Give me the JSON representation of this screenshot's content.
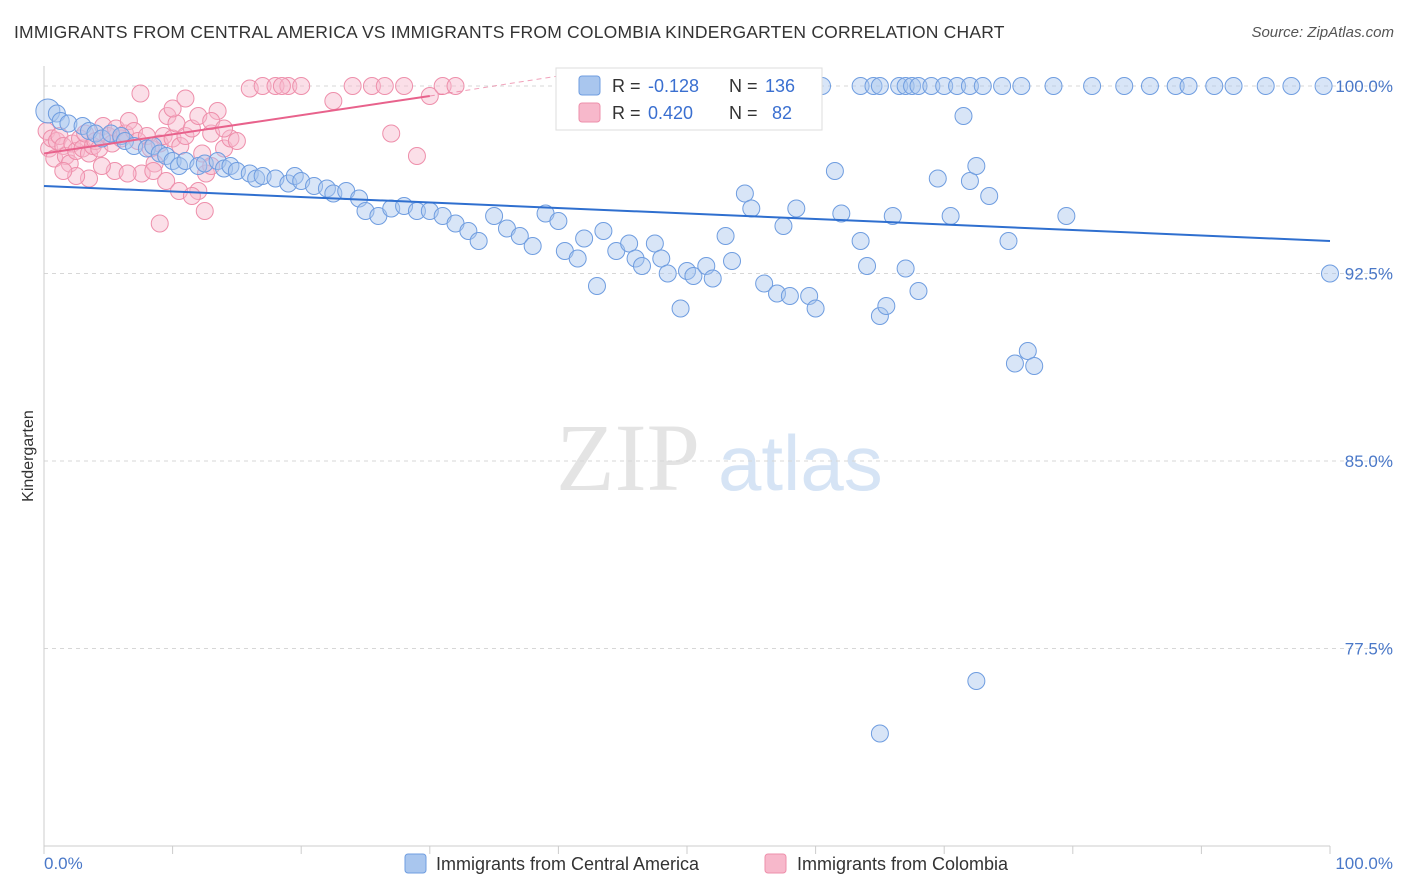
{
  "header": {
    "title": "IMMIGRANTS FROM CENTRAL AMERICA VS IMMIGRANTS FROM COLOMBIA KINDERGARTEN CORRELATION CHART",
    "source": "Source: ZipAtlas.com"
  },
  "watermark": {
    "zip": "ZIP",
    "atlas": "atlas"
  },
  "colors": {
    "blue_fill": "#a9c6ee",
    "blue_stroke": "#6f9de0",
    "blue_line": "#2f6fcf",
    "pink_fill": "#f7b8cb",
    "pink_stroke": "#ee8fab",
    "pink_line": "#e8628c",
    "grid": "#d7d7d7",
    "axis_text": "#4a78c8"
  },
  "stats_box": {
    "r_label": "R =",
    "n_label": "N =",
    "blue": {
      "r": "-0.128",
      "n": "136"
    },
    "pink": {
      "r": "0.420",
      "n": "82"
    }
  },
  "legend": {
    "blue_label": "Immigrants from Central America",
    "pink_label": "Immigrants from Colombia"
  },
  "chart_data": {
    "type": "scatter",
    "title": "IMMIGRANTS FROM CENTRAL AMERICA VS IMMIGRANTS FROM COLOMBIA KINDERGARTEN CORRELATION CHART",
    "xlabel": "",
    "ylabel": "Kindergarten",
    "x_tick_labels": [
      "0.0%",
      "100.0%"
    ],
    "y_tick_labels": [
      "100.0%",
      "92.5%",
      "85.0%",
      "77.5%"
    ],
    "y_ticks": [
      100.0,
      92.5,
      85.0,
      77.5
    ],
    "xlim": [
      0,
      100
    ],
    "ylim": [
      69.6,
      100.8
    ],
    "grid": true,
    "legend_position": "bottom",
    "series": [
      {
        "name": "Immigrants from Central America",
        "color": "#a9c6ee",
        "trend": {
          "x": [
            0,
            100
          ],
          "y": [
            96.0,
            93.8
          ]
        },
        "points": [
          [
            0.3,
            99.0
          ],
          [
            1.0,
            98.9
          ],
          [
            1.3,
            98.6
          ],
          [
            1.9,
            98.5
          ],
          [
            3.0,
            98.4
          ],
          [
            3.5,
            98.2
          ],
          [
            4.0,
            98.1
          ],
          [
            4.5,
            97.9
          ],
          [
            5.2,
            98.1
          ],
          [
            6.0,
            98.0
          ],
          [
            6.3,
            97.8
          ],
          [
            7.0,
            97.6
          ],
          [
            8.0,
            97.5
          ],
          [
            8.5,
            97.6
          ],
          [
            9.0,
            97.3
          ],
          [
            9.5,
            97.2
          ],
          [
            10.0,
            97.0
          ],
          [
            10.5,
            96.8
          ],
          [
            11.0,
            97.0
          ],
          [
            12.0,
            96.8
          ],
          [
            12.5,
            96.9
          ],
          [
            13.5,
            97.0
          ],
          [
            14.0,
            96.7
          ],
          [
            14.5,
            96.8
          ],
          [
            15.0,
            96.6
          ],
          [
            16.0,
            96.5
          ],
          [
            16.5,
            96.3
          ],
          [
            17.0,
            96.4
          ],
          [
            18.0,
            96.3
          ],
          [
            19.0,
            96.1
          ],
          [
            19.5,
            96.4
          ],
          [
            20.0,
            96.2
          ],
          [
            21.0,
            96.0
          ],
          [
            22.0,
            95.9
          ],
          [
            22.5,
            95.7
          ],
          [
            23.5,
            95.8
          ],
          [
            24.5,
            95.5
          ],
          [
            25.0,
            95.0
          ],
          [
            26.0,
            94.8
          ],
          [
            27.0,
            95.1
          ],
          [
            28.0,
            95.2
          ],
          [
            29.0,
            95.0
          ],
          [
            30.0,
            95.0
          ],
          [
            31.0,
            94.8
          ],
          [
            32.0,
            94.5
          ],
          [
            33.0,
            94.2
          ],
          [
            33.8,
            93.8
          ],
          [
            35.0,
            94.8
          ],
          [
            36.0,
            94.3
          ],
          [
            37.0,
            94.0
          ],
          [
            38.0,
            93.6
          ],
          [
            39.0,
            94.9
          ],
          [
            40.0,
            94.6
          ],
          [
            40.5,
            93.4
          ],
          [
            41.5,
            93.1
          ],
          [
            42.0,
            93.9
          ],
          [
            43.0,
            92.0
          ],
          [
            43.5,
            94.2
          ],
          [
            44.5,
            93.4
          ],
          [
            45.5,
            93.7
          ],
          [
            46.0,
            93.1
          ],
          [
            46.5,
            92.8
          ],
          [
            47.5,
            93.7
          ],
          [
            48.0,
            93.1
          ],
          [
            48.5,
            92.5
          ],
          [
            49.5,
            91.1
          ],
          [
            50.0,
            92.6
          ],
          [
            50.5,
            92.4
          ],
          [
            51.5,
            92.8
          ],
          [
            52.0,
            92.3
          ],
          [
            53.0,
            94.0
          ],
          [
            53.5,
            93.0
          ],
          [
            54.5,
            95.7
          ],
          [
            55.0,
            95.1
          ],
          [
            56.0,
            92.1
          ],
          [
            57.0,
            91.7
          ],
          [
            57.5,
            94.4
          ],
          [
            58.0,
            91.6
          ],
          [
            58.5,
            95.1
          ],
          [
            59.5,
            91.6
          ],
          [
            60.0,
            91.1
          ],
          [
            61.5,
            96.6
          ],
          [
            62.0,
            94.9
          ],
          [
            63.5,
            93.8
          ],
          [
            64.0,
            92.8
          ],
          [
            65.0,
            90.8
          ],
          [
            65.5,
            91.2
          ],
          [
            66.0,
            94.8
          ],
          [
            67.0,
            92.7
          ],
          [
            68.0,
            91.8
          ],
          [
            69.5,
            96.3
          ],
          [
            70.5,
            94.8
          ],
          [
            71.5,
            98.8
          ],
          [
            72.0,
            96.2
          ],
          [
            72.5,
            96.8
          ],
          [
            73.5,
            95.6
          ],
          [
            75.0,
            93.8
          ],
          [
            75.5,
            88.9
          ],
          [
            76.5,
            89.4
          ],
          [
            77.0,
            88.8
          ],
          [
            79.5,
            94.8
          ],
          [
            100.0,
            92.5
          ],
          [
            60.5,
            100.0
          ],
          [
            63.5,
            100.0
          ],
          [
            64.5,
            100.0
          ],
          [
            65.0,
            100.0
          ],
          [
            66.5,
            100.0
          ],
          [
            67.0,
            100.0
          ],
          [
            67.5,
            100.0
          ],
          [
            68.0,
            100.0
          ],
          [
            69.0,
            100.0
          ],
          [
            70.0,
            100.0
          ],
          [
            71.0,
            100.0
          ],
          [
            72.0,
            100.0
          ],
          [
            73.0,
            100.0
          ],
          [
            74.5,
            100.0
          ],
          [
            76.0,
            100.0
          ],
          [
            78.5,
            100.0
          ],
          [
            81.5,
            100.0
          ],
          [
            84.0,
            100.0
          ],
          [
            86.0,
            100.0
          ],
          [
            88.0,
            100.0
          ],
          [
            89.0,
            100.0
          ],
          [
            91.0,
            100.0
          ],
          [
            92.5,
            100.0
          ],
          [
            95.0,
            100.0
          ],
          [
            97.0,
            100.0
          ],
          [
            99.5,
            100.0
          ],
          [
            53.0,
            100.0
          ],
          [
            55.0,
            100.0
          ],
          [
            57.0,
            100.0
          ],
          [
            58.5,
            100.0
          ],
          [
            72.5,
            76.2
          ],
          [
            65.0,
            74.1
          ]
        ]
      },
      {
        "name": "Immigrants from Colombia",
        "color": "#f7b8cb",
        "trend": {
          "x": [
            0,
            30
          ],
          "y": [
            97.3,
            99.6
          ]
        },
        "trend_dashed": {
          "x": [
            30,
            40
          ],
          "y": [
            99.6,
            100.4
          ]
        },
        "points": [
          [
            0.2,
            98.2
          ],
          [
            0.4,
            97.5
          ],
          [
            0.6,
            97.9
          ],
          [
            0.8,
            97.1
          ],
          [
            1.0,
            97.8
          ],
          [
            1.2,
            98.0
          ],
          [
            1.5,
            97.6
          ],
          [
            1.7,
            97.2
          ],
          [
            2.0,
            96.9
          ],
          [
            2.2,
            97.7
          ],
          [
            2.5,
            97.4
          ],
          [
            2.8,
            97.9
          ],
          [
            3.0,
            97.5
          ],
          [
            3.2,
            98.1
          ],
          [
            3.5,
            97.3
          ],
          [
            3.8,
            97.6
          ],
          [
            4.0,
            97.8
          ],
          [
            4.3,
            97.5
          ],
          [
            4.6,
            98.4
          ],
          [
            5.0,
            98.0
          ],
          [
            5.3,
            97.7
          ],
          [
            5.6,
            98.3
          ],
          [
            6.0,
            97.9
          ],
          [
            6.3,
            98.1
          ],
          [
            6.6,
            98.6
          ],
          [
            7.0,
            98.2
          ],
          [
            7.3,
            97.8
          ],
          [
            7.6,
            96.5
          ],
          [
            8.0,
            98.0
          ],
          [
            8.3,
            97.5
          ],
          [
            8.6,
            96.9
          ],
          [
            9.0,
            97.7
          ],
          [
            9.3,
            98.0
          ],
          [
            9.6,
            98.8
          ],
          [
            10.0,
            97.9
          ],
          [
            10.3,
            98.5
          ],
          [
            10.6,
            97.6
          ],
          [
            11.0,
            98.0
          ],
          [
            11.5,
            98.3
          ],
          [
            12.0,
            95.8
          ],
          [
            12.3,
            97.3
          ],
          [
            12.6,
            96.5
          ],
          [
            13.0,
            98.1
          ],
          [
            13.5,
            99.0
          ],
          [
            14.0,
            97.5
          ],
          [
            14.5,
            97.9
          ],
          [
            7.5,
            99.7
          ],
          [
            8.5,
            96.6
          ],
          [
            9.5,
            96.2
          ],
          [
            10.5,
            95.8
          ],
          [
            11.5,
            95.6
          ],
          [
            12.5,
            95.0
          ],
          [
            9.0,
            94.5
          ],
          [
            13.0,
            96.8
          ],
          [
            5.5,
            96.6
          ],
          [
            6.5,
            96.5
          ],
          [
            4.5,
            96.8
          ],
          [
            3.5,
            96.3
          ],
          [
            2.5,
            96.4
          ],
          [
            1.5,
            96.6
          ],
          [
            10.0,
            99.1
          ],
          [
            11.0,
            99.5
          ],
          [
            12.0,
            98.8
          ],
          [
            13.0,
            98.6
          ],
          [
            14.0,
            98.3
          ],
          [
            15.0,
            97.8
          ],
          [
            16.0,
            99.9
          ],
          [
            17.0,
            100.0
          ],
          [
            18.0,
            100.0
          ],
          [
            19.0,
            100.0
          ],
          [
            20.0,
            100.0
          ],
          [
            22.5,
            99.4
          ],
          [
            24.0,
            100.0
          ],
          [
            25.5,
            100.0
          ],
          [
            28.0,
            100.0
          ],
          [
            30.0,
            99.6
          ],
          [
            31.0,
            100.0
          ],
          [
            32.0,
            100.0
          ],
          [
            27.0,
            98.1
          ],
          [
            29.0,
            97.2
          ],
          [
            26.5,
            100.0
          ],
          [
            18.5,
            100.0
          ]
        ]
      }
    ]
  }
}
